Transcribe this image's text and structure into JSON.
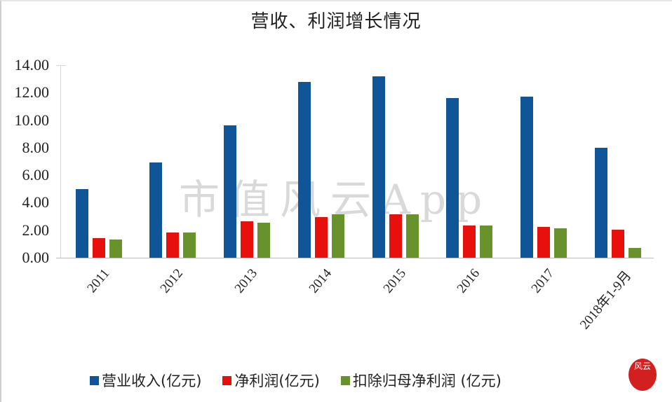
{
  "chart_data": {
    "type": "bar",
    "title": "营收、利润增长情况",
    "xlabel": "",
    "ylabel": "",
    "ylim": [
      0,
      14
    ],
    "yticks": [
      "0.00",
      "2.00",
      "4.00",
      "6.00",
      "8.00",
      "10.00",
      "12.00",
      "14.00"
    ],
    "grid": false,
    "legend_position": "bottom",
    "categories": [
      "2011",
      "2012",
      "2013",
      "2014",
      "2015",
      "2016",
      "2017",
      "2018年1-9月"
    ],
    "series": [
      {
        "name": "营业收入(亿元)",
        "color": "#0f5597",
        "values": [
          5.0,
          6.9,
          9.6,
          12.8,
          13.2,
          11.6,
          11.7,
          8.0
        ]
      },
      {
        "name": "净利润(亿元)",
        "color": "#e8100d",
        "values": [
          1.45,
          1.85,
          2.65,
          2.95,
          3.15,
          2.35,
          2.25,
          2.05
        ]
      },
      {
        "name": "扣除归母净利润(亿元)",
        "color": "#67922c",
        "values": [
          1.3,
          1.85,
          2.55,
          3.15,
          3.15,
          2.35,
          2.15,
          0.7
        ]
      }
    ]
  },
  "title": "营收、利润增长情况",
  "watermark": "市值风云App",
  "legend": [
    {
      "label": "营业收入(亿元)",
      "color": "#0f5597"
    },
    {
      "label": "净利润(亿元)",
      "color": "#e8100d"
    },
    {
      "label": "扣除归母净利润 (亿元)",
      "color": "#67922c"
    }
  ],
  "seal_text": "风云"
}
